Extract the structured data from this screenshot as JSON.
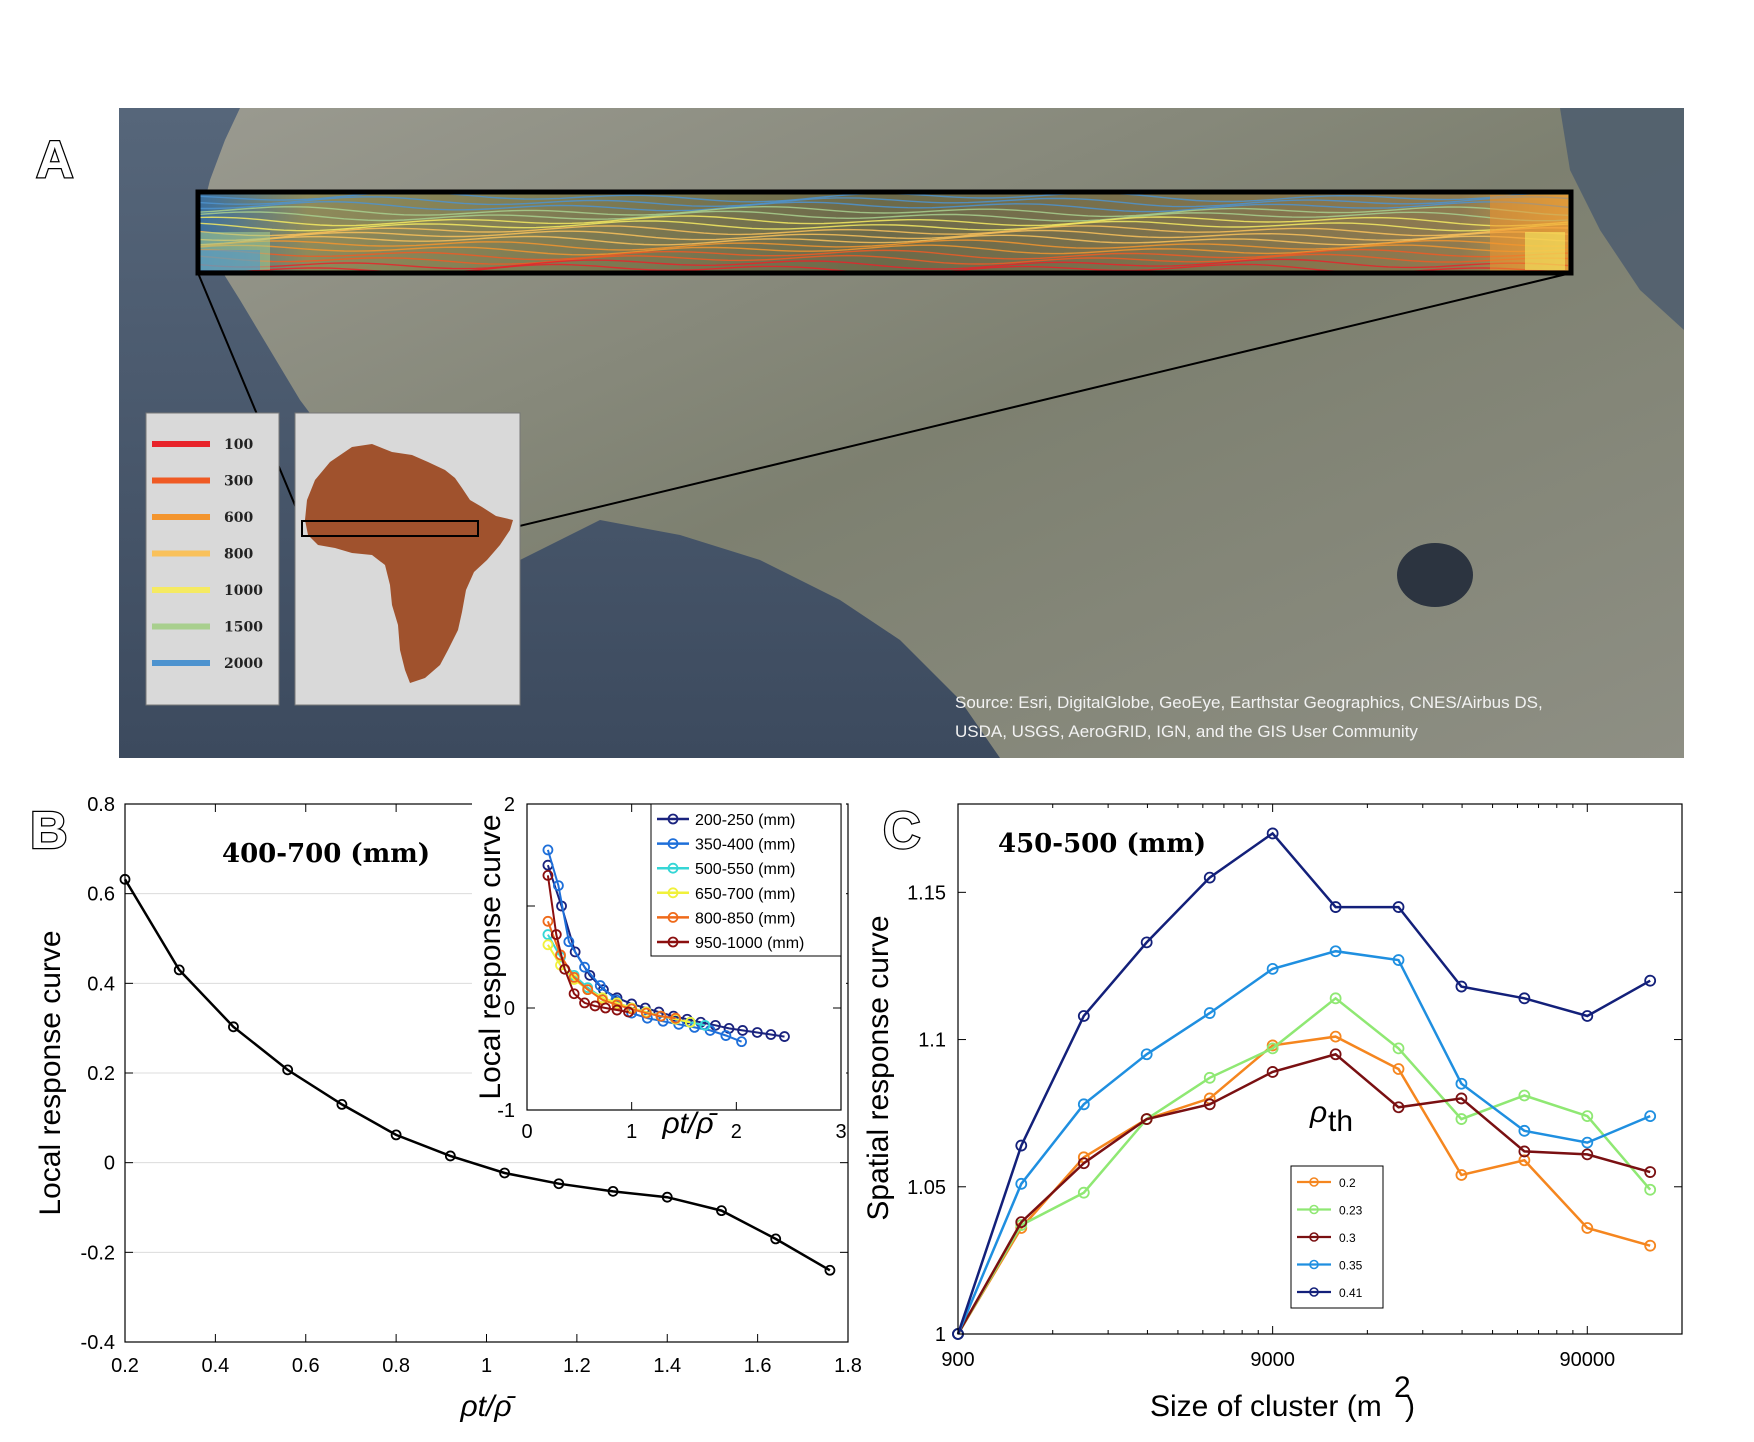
{
  "panel_a": {
    "letter": "A",
    "source_line1": "Source: Esri, DigitalGlobe, GeoEye, Earthstar Geographics, CNES/Airbus DS,",
    "source_line2": "USDA, USGS, AeroGRID, IGN, and the GIS User Community",
    "legend": [
      {
        "label": "100",
        "color": "#e8232a"
      },
      {
        "label": "300",
        "color": "#ef5a24"
      },
      {
        "label": "600",
        "color": "#f3952e"
      },
      {
        "label": "800",
        "color": "#f9c15b"
      },
      {
        "label": "1000",
        "color": "#f5ea62"
      },
      {
        "label": "1500",
        "color": "#a8cf8e"
      },
      {
        "label": "2000",
        "color": "#4d93cf"
      }
    ],
    "africa_color": "#a0522d"
  },
  "panel_b": {
    "letter": "B",
    "annotation": "400-700 (mm)"
  },
  "panel_c": {
    "letter": "C",
    "annotation": "450-500 (mm)",
    "legend_title": "ρ",
    "legend_title_sub": "th"
  },
  "chart_data": [
    {
      "id": "B-main",
      "type": "line",
      "title": "",
      "xlabel": "ρt/ρ̄",
      "ylabel": "Local response curve",
      "xlim": [
        0.2,
        1.8
      ],
      "ylim": [
        -0.4,
        0.8
      ],
      "xticks": [
        0.2,
        0.4,
        0.6,
        0.8,
        1,
        1.2,
        1.4,
        1.6,
        1.8
      ],
      "xtick_labels": [
        "0.2",
        "0.4",
        "0.6",
        "0.8",
        "1",
        "1.2",
        "1.4",
        "1.6",
        "1.8"
      ],
      "yticks": [
        -0.4,
        -0.2,
        0,
        0.2,
        0.4,
        0.6,
        0.8
      ],
      "ytick_labels": [
        "-0.4",
        "-0.2",
        "0",
        "0.2",
        "0.4",
        "0.6",
        "0.8"
      ],
      "grid": true,
      "series": [
        {
          "name": "400-700 (mm)",
          "color": "#000000",
          "x": [
            0.2,
            0.32,
            0.44,
            0.56,
            0.68,
            0.8,
            0.92,
            1.04,
            1.16,
            1.28,
            1.4,
            1.52,
            1.64,
            1.76
          ],
          "y": [
            0.632,
            0.43,
            0.303,
            0.207,
            0.13,
            0.062,
            0.015,
            -0.023,
            -0.047,
            -0.064,
            -0.077,
            -0.107,
            -0.17,
            -0.24
          ]
        }
      ]
    },
    {
      "id": "B-inset",
      "type": "line",
      "xlabel": "ρt/ρ̄",
      "ylabel": "Local response curve",
      "xlim": [
        0,
        3
      ],
      "ylim": [
        -1,
        2
      ],
      "xticks": [
        0,
        1,
        2,
        3
      ],
      "xtick_labels": [
        "0",
        "1",
        "2",
        "3"
      ],
      "yticks": [
        -1,
        0,
        1,
        2
      ],
      "ytick_labels": [
        "-1",
        "0",
        "",
        "2"
      ],
      "legend_position": "top-right",
      "series": [
        {
          "name": "200-250 (mm)",
          "color": "#1a237e",
          "x": [
            0.2,
            0.33,
            0.46,
            0.6,
            0.73,
            0.86,
            1.0,
            1.13,
            1.26,
            1.4,
            1.53,
            1.66,
            1.8,
            1.93,
            2.06,
            2.2,
            2.33,
            2.46
          ],
          "y": [
            1.4,
            1.0,
            0.55,
            0.32,
            0.18,
            0.1,
            0.04,
            0.0,
            -0.04,
            -0.08,
            -0.11,
            -0.14,
            -0.17,
            -0.2,
            -0.22,
            -0.24,
            -0.26,
            -0.28
          ]
        },
        {
          "name": "350-400 (mm)",
          "color": "#1e6fd9",
          "x": [
            0.2,
            0.3,
            0.4,
            0.55,
            0.7,
            0.85,
            1.0,
            1.15,
            1.3,
            1.45,
            1.6,
            1.75,
            1.9,
            2.05
          ],
          "y": [
            1.55,
            1.2,
            0.65,
            0.4,
            0.22,
            0.08,
            -0.05,
            -0.1,
            -0.13,
            -0.16,
            -0.19,
            -0.22,
            -0.27,
            -0.33
          ]
        },
        {
          "name": "500-550 (mm)",
          "color": "#35d6d6",
          "x": [
            0.2,
            0.32,
            0.45,
            0.58,
            0.72,
            0.86,
            1.0,
            1.14,
            1.28,
            1.42,
            1.56,
            1.7
          ],
          "y": [
            0.72,
            0.5,
            0.32,
            0.2,
            0.1,
            0.05,
            0.0,
            -0.04,
            -0.08,
            -0.11,
            -0.14,
            -0.17
          ]
        },
        {
          "name": "650-700 (mm)",
          "color": "#f1f13a",
          "x": [
            0.2,
            0.32,
            0.45,
            0.58,
            0.72,
            0.86,
            1.0,
            1.14,
            1.28,
            1.42,
            1.56
          ],
          "y": [
            0.62,
            0.42,
            0.28,
            0.18,
            0.1,
            0.05,
            0.0,
            -0.04,
            -0.08,
            -0.11,
            -0.14
          ]
        },
        {
          "name": "800-850 (mm)",
          "color": "#ef6a1a",
          "x": [
            0.2,
            0.32,
            0.45,
            0.58,
            0.72,
            0.86,
            1.0,
            1.14,
            1.28,
            1.42
          ],
          "y": [
            0.85,
            0.52,
            0.3,
            0.18,
            0.08,
            0.03,
            -0.01,
            -0.05,
            -0.08,
            -0.1
          ]
        },
        {
          "name": "950-1000 (mm)",
          "color": "#8b0f0f",
          "x": [
            0.2,
            0.28,
            0.36,
            0.45,
            0.55,
            0.65,
            0.75,
            0.86,
            0.97
          ],
          "y": [
            1.3,
            0.72,
            0.38,
            0.14,
            0.05,
            0.02,
            0.0,
            -0.02,
            -0.04
          ]
        }
      ]
    },
    {
      "id": "C",
      "type": "line",
      "xlabel": "Size of cluster (m²)",
      "xlabel_main": "Size of cluster (m",
      "xlabel_sup": "2",
      "xlabel_end": ")",
      "ylabel": "Spatial response curve",
      "xscale": "log",
      "xlim": [
        900,
        180000
      ],
      "ylim": [
        1.0,
        1.18
      ],
      "xticks": [
        900,
        9000,
        90000
      ],
      "xtick_labels": [
        "900",
        "9000",
        "90000"
      ],
      "yticks": [
        1.0,
        1.05,
        1.1,
        1.15
      ],
      "ytick_labels": [
        "1",
        "1.05",
        "1.1",
        "1.15"
      ],
      "legend_position": "bottom-center",
      "series": [
        {
          "name": "0.2",
          "color": "#f5861f",
          "x": [
            900,
            1430,
            2260,
            3580,
            5680,
            9000,
            14270,
            22610,
            35830,
            56800,
            90000,
            142600
          ],
          "y": [
            1.0,
            1.036,
            1.06,
            1.073,
            1.08,
            1.098,
            1.101,
            1.09,
            1.054,
            1.059,
            1.036,
            1.03
          ]
        },
        {
          "name": "0.23",
          "color": "#8fe873",
          "x": [
            900,
            1430,
            2260,
            3580,
            5680,
            9000,
            14270,
            22610,
            35830,
            56800,
            90000,
            142600
          ],
          "y": [
            1.0,
            1.037,
            1.048,
            1.073,
            1.087,
            1.097,
            1.114,
            1.097,
            1.073,
            1.081,
            1.074,
            1.049
          ]
        },
        {
          "name": "0.3",
          "color": "#7a1012",
          "x": [
            900,
            1430,
            2260,
            3580,
            5680,
            9000,
            14270,
            22610,
            35830,
            56800,
            90000,
            142600
          ],
          "y": [
            1.0,
            1.038,
            1.058,
            1.073,
            1.078,
            1.089,
            1.095,
            1.077,
            1.08,
            1.062,
            1.061,
            1.055
          ]
        },
        {
          "name": "0.35",
          "color": "#1f8fe0",
          "x": [
            900,
            1430,
            2260,
            3580,
            5680,
            9000,
            14270,
            22610,
            35830,
            56800,
            90000,
            142600
          ],
          "y": [
            1.0,
            1.051,
            1.078,
            1.095,
            1.109,
            1.124,
            1.13,
            1.127,
            1.085,
            1.069,
            1.065,
            1.074
          ]
        },
        {
          "name": "0.41",
          "color": "#13207a",
          "x": [
            900,
            1430,
            2260,
            3580,
            5680,
            9000,
            14270,
            22610,
            35830,
            56800,
            90000,
            142600
          ],
          "y": [
            1.0,
            1.064,
            1.108,
            1.133,
            1.155,
            1.17,
            1.145,
            1.145,
            1.118,
            1.114,
            1.108,
            1.12
          ]
        }
      ]
    }
  ]
}
